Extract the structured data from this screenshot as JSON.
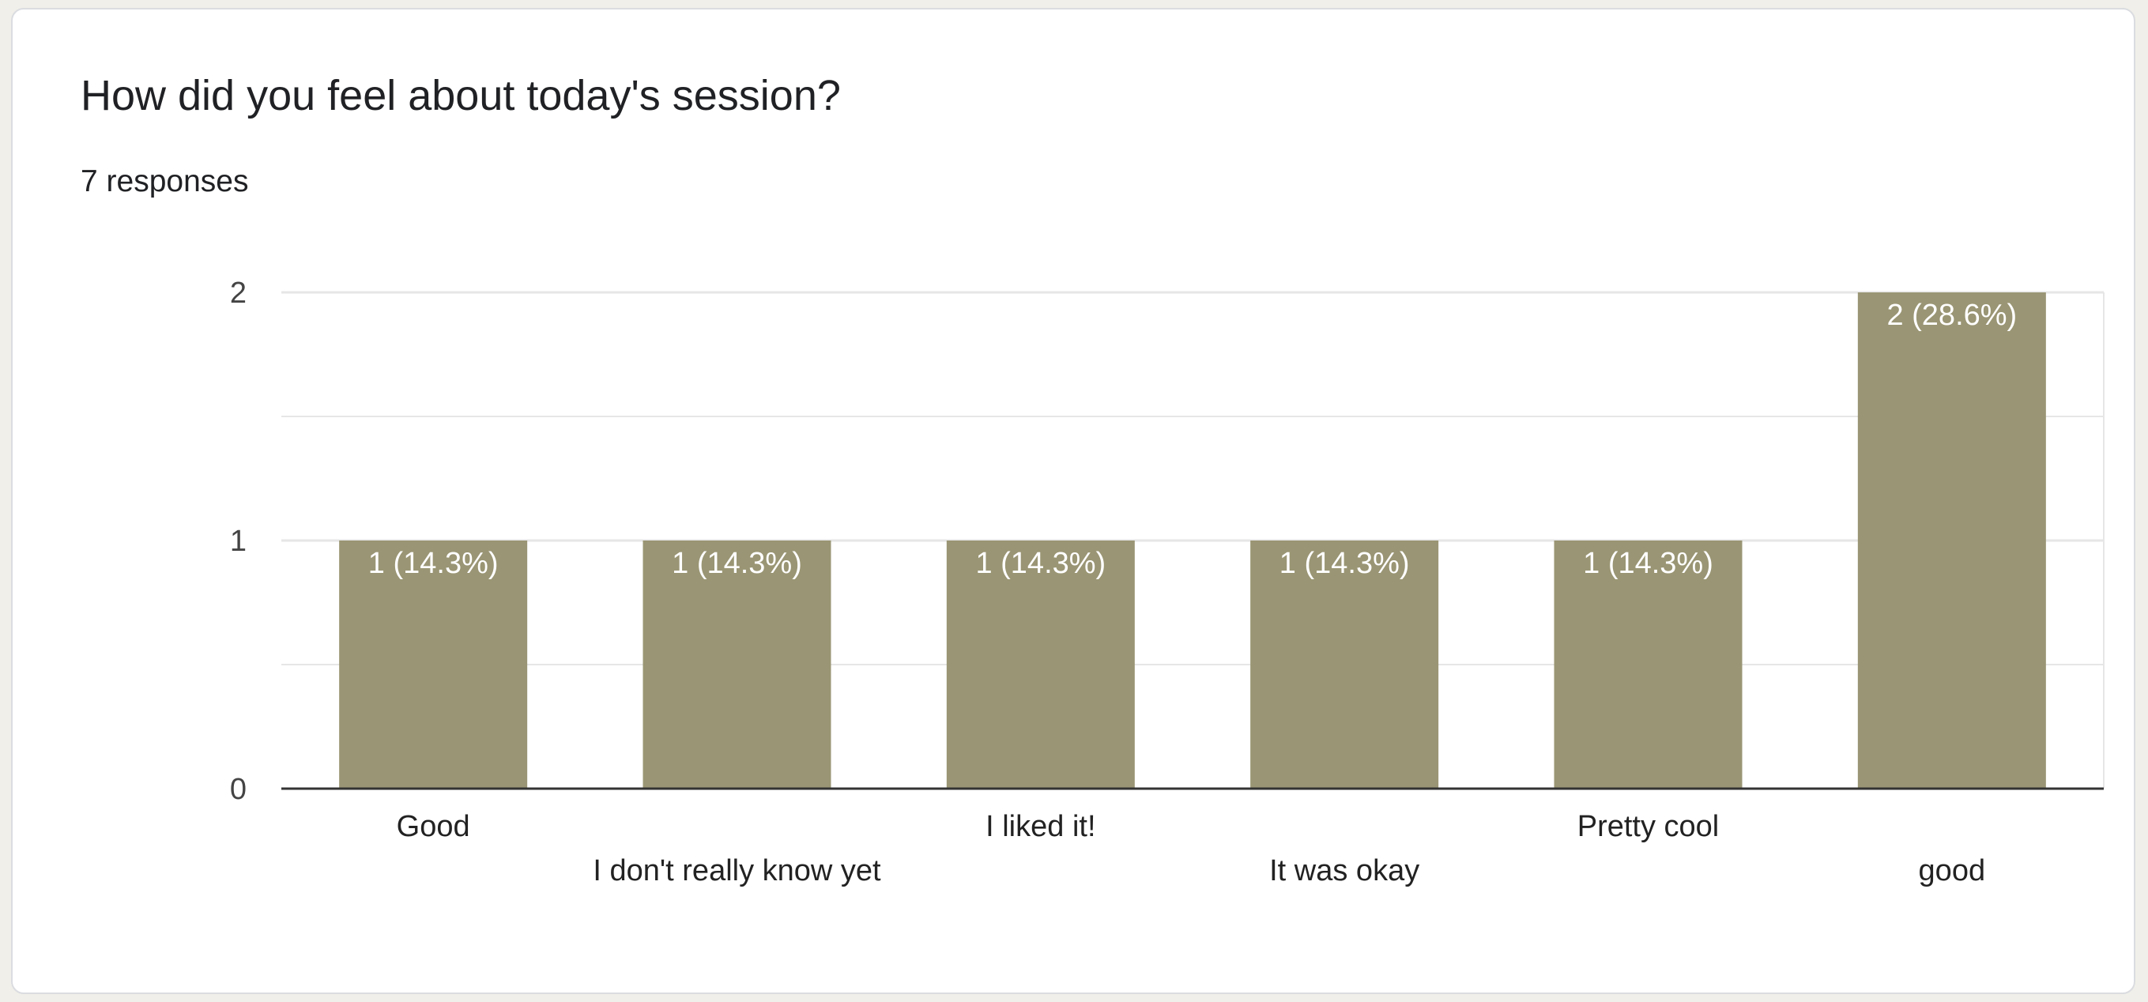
{
  "question": {
    "title": "How did you feel about today's session?",
    "responses": "7 responses"
  },
  "colors": {
    "bar": "#9a9574",
    "gridline": "#e6e6e6",
    "axis": "#333333"
  },
  "chart_data": {
    "type": "bar",
    "categories": [
      "Good",
      "I don't really know yet",
      "I liked it!",
      "It was okay",
      "Pretty cool",
      "good"
    ],
    "values": [
      1,
      1,
      1,
      1,
      1,
      2
    ],
    "data_labels": [
      "1 (14.3%)",
      "1 (14.3%)",
      "1 (14.3%)",
      "1 (14.3%)",
      "1 (14.3%)",
      "2 (28.6%)"
    ],
    "yticks": [
      "0",
      "1",
      "2"
    ],
    "ylim": [
      0,
      2
    ],
    "grid": true,
    "legend": "none"
  }
}
